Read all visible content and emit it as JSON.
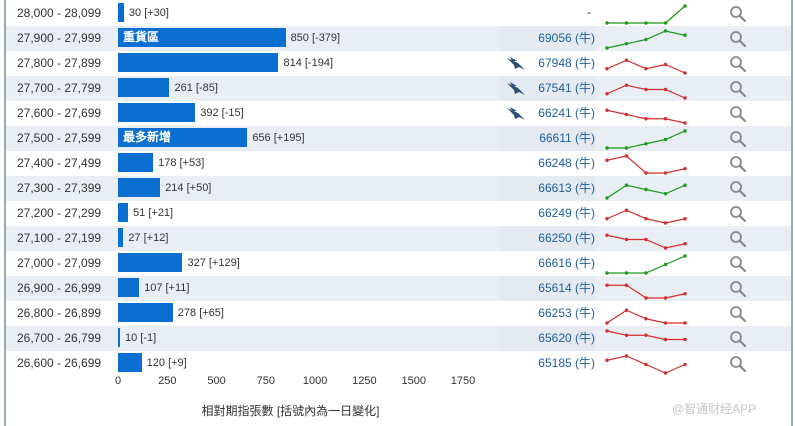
{
  "colors": {
    "bar": "#0b6fd2",
    "up_line": "#1a9b1a",
    "down_line": "#d42e2e",
    "code_text": "#1f5f9a",
    "bird": "#2d4c78"
  },
  "x_axis": {
    "ticks": [
      "0",
      "250",
      "500",
      "750",
      "1000",
      "1250",
      "1500",
      "1750"
    ],
    "max": 1750,
    "label": "相對期指張數 [括號內為一日變化]"
  },
  "watermark": "@智通财经APP",
  "rows": [
    {
      "range": "28,000 - 28,099",
      "value": 30,
      "label": "30 [+30]",
      "tag": "",
      "code": "",
      "trend": "up",
      "spark": [
        1,
        1,
        1,
        1,
        5
      ],
      "bird": false,
      "alt": false,
      "highlight": false,
      "dash": "-"
    },
    {
      "range": "27,900 - 27,999",
      "value": 850,
      "label": "850 [-379]",
      "tag": "重貨區",
      "code": "69056 (牛)",
      "trend": "up",
      "spark": [
        1,
        2,
        3,
        5,
        4
      ],
      "bird": false,
      "alt": true,
      "highlight": true,
      "dash": ""
    },
    {
      "range": "27,800 - 27,899",
      "value": 814,
      "label": "814 [-194]",
      "tag": "",
      "code": "67948 (牛)",
      "trend": "down",
      "spark": [
        2,
        4,
        2,
        3,
        1
      ],
      "bird": true,
      "alt": false,
      "highlight": false,
      "dash": ""
    },
    {
      "range": "27,700 - 27,799",
      "value": 261,
      "label": "261 [-85]",
      "tag": "",
      "code": "67541 (牛)",
      "trend": "down",
      "spark": [
        2,
        4,
        3,
        3,
        1
      ],
      "bird": true,
      "alt": true,
      "highlight": true,
      "dash": ""
    },
    {
      "range": "27,600 - 27,699",
      "value": 392,
      "label": "392 [-15]",
      "tag": "",
      "code": "66241 (牛)",
      "trend": "down",
      "spark": [
        4,
        3,
        2,
        2,
        1
      ],
      "bird": true,
      "alt": false,
      "highlight": false,
      "dash": ""
    },
    {
      "range": "27,500 - 27,599",
      "value": 656,
      "label": "656 [+195]",
      "tag": "最多新增",
      "code": "66611 (牛)",
      "trend": "up",
      "spark": [
        1,
        1,
        2,
        3,
        5
      ],
      "bird": false,
      "alt": true,
      "highlight": true,
      "dash": ""
    },
    {
      "range": "27,400 - 27,499",
      "value": 178,
      "label": "178 [+53]",
      "tag": "",
      "code": "66248 (牛)",
      "trend": "down",
      "spark": [
        4,
        5,
        1,
        1,
        2
      ],
      "bird": false,
      "alt": false,
      "highlight": false,
      "dash": ""
    },
    {
      "range": "27,300 - 27,399",
      "value": 214,
      "label": "214 [+50]",
      "tag": "",
      "code": "66613 (牛)",
      "trend": "up",
      "spark": [
        1,
        4,
        3,
        2,
        4
      ],
      "bird": false,
      "alt": true,
      "highlight": true,
      "dash": ""
    },
    {
      "range": "27,200 - 27,299",
      "value": 51,
      "label": "51 [+21]",
      "tag": "",
      "code": "66249 (牛)",
      "trend": "down",
      "spark": [
        2,
        4,
        2,
        1,
        2
      ],
      "bird": false,
      "alt": false,
      "highlight": false,
      "dash": ""
    },
    {
      "range": "27,100 - 27,199",
      "value": 27,
      "label": "27 [+12]",
      "tag": "",
      "code": "66250 (牛)",
      "trend": "down",
      "spark": [
        4,
        3,
        3,
        1,
        2
      ],
      "bird": false,
      "alt": true,
      "highlight": true,
      "dash": ""
    },
    {
      "range": "27,000 - 27,099",
      "value": 327,
      "label": "327 [+129]",
      "tag": "",
      "code": "66616 (牛)",
      "trend": "up",
      "spark": [
        1,
        1,
        1,
        3,
        5
      ],
      "bird": false,
      "alt": false,
      "highlight": false,
      "dash": ""
    },
    {
      "range": "26,900 - 26,999",
      "value": 107,
      "label": "107 [+11]",
      "tag": "",
      "code": "65614 (牛)",
      "trend": "down",
      "spark": [
        4,
        4,
        1,
        1,
        2
      ],
      "bird": false,
      "alt": true,
      "highlight": true,
      "dash": ""
    },
    {
      "range": "26,800 - 26,899",
      "value": 278,
      "label": "278 [+65]",
      "tag": "",
      "code": "66253 (牛)",
      "trend": "down",
      "spark": [
        1,
        4,
        2,
        1,
        1
      ],
      "bird": false,
      "alt": false,
      "highlight": false,
      "dash": ""
    },
    {
      "range": "26,700 - 26,799",
      "value": 10,
      "label": "10 [-1]",
      "tag": "",
      "code": "65620 (牛)",
      "trend": "down",
      "spark": [
        5,
        4,
        4,
        3,
        3
      ],
      "bird": false,
      "alt": true,
      "highlight": true,
      "dash": ""
    },
    {
      "range": "26,600 - 26,699",
      "value": 120,
      "label": "120 [+9]",
      "tag": "",
      "code": "65185 (牛)",
      "trend": "down",
      "spark": [
        4,
        5,
        3,
        1,
        3
      ],
      "bird": false,
      "alt": false,
      "highlight": false,
      "dash": ""
    }
  ]
}
